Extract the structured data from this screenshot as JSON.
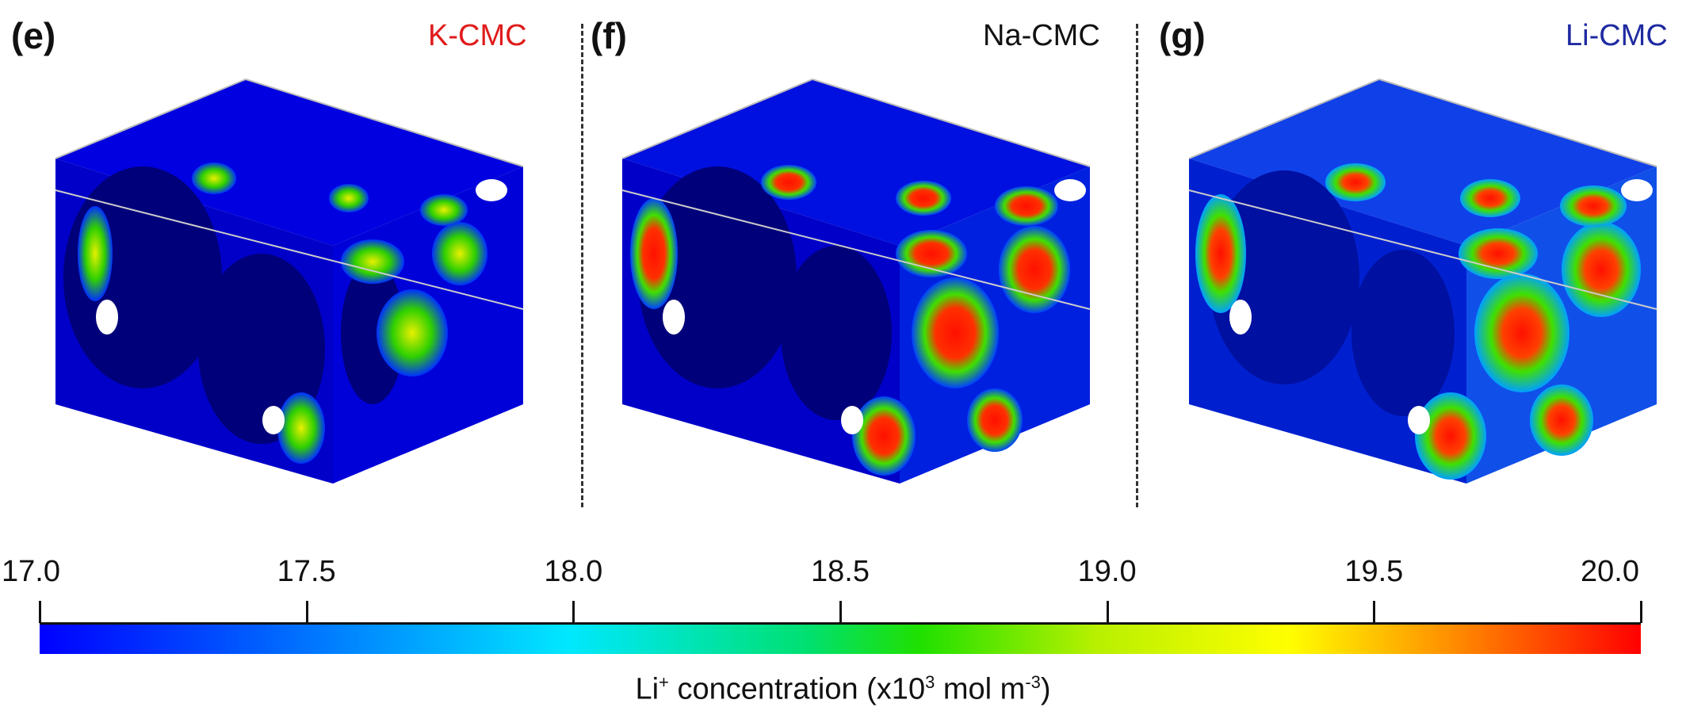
{
  "panels": [
    {
      "letter": "(e)",
      "title": "K-CMC",
      "title_color": "#e01b1b"
    },
    {
      "letter": "(f)",
      "title": "Na-CMC",
      "title_color": "#111111"
    },
    {
      "letter": "(g)",
      "title": "Li-CMC",
      "title_color": "#1e2aa0"
    }
  ],
  "colorbar": {
    "ticks": [
      "17.0",
      "17.5",
      "18.0",
      "18.5",
      "19.0",
      "19.5",
      "20.0"
    ],
    "min": 17.0,
    "max": 20.0,
    "label_prefix": "Li",
    "label_sup1": "+",
    "label_mid": " concentration (x10",
    "label_sup2": "3",
    "label_mid2": " mol m",
    "label_sup3": "-3",
    "label_suffix": ")",
    "colors": [
      "#0000ff",
      "#00e8ff",
      "#20e000",
      "#ffff00",
      "#ff0000"
    ]
  }
}
